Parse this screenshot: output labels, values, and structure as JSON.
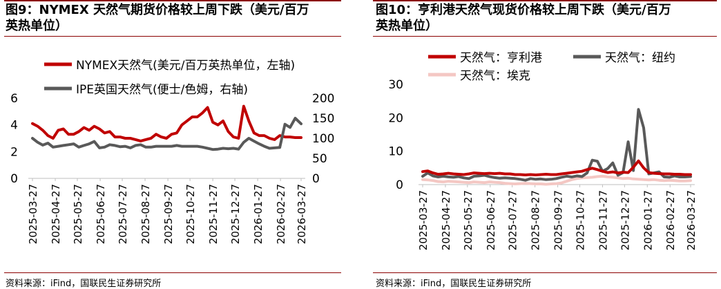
{
  "panels": [
    {
      "title_line1": "图9：NYMEX 天然气期货价格较上周下跌（美元/百万",
      "title_line2": "英热单位）",
      "source": "资料来源：iFind，国联民生证券研究所"
    },
    {
      "title_line1": "图10：亨利港天然气现货价格较上周下跌（美元/百万",
      "title_line2": "英热单位）",
      "source": "资料来源：iFind，国联民生证券研究所"
    }
  ],
  "chart_data": [
    {
      "type": "line",
      "x_ticks": [
        "2025-03-27",
        "2025-04-27",
        "2025-05-27",
        "2025-06-27",
        "2025-07-27",
        "2025-08-27",
        "2025-09-27",
        "2025-10-27",
        "2025-11-27",
        "2025-12-27",
        "2026-01-27",
        "2026-02-27",
        "2026-03-27"
      ],
      "y_left": {
        "ticks": [
          0,
          2,
          4,
          6
        ],
        "range": [
          0,
          6
        ]
      },
      "y_right": {
        "ticks": [
          0,
          50,
          100,
          150,
          200
        ],
        "range": [
          0,
          200
        ]
      },
      "legend": "top",
      "series": [
        {
          "name": "NYMEX天然气(美元/百万英热单位，左轴)",
          "axis": "left",
          "color": "#c00000",
          "x": [
            "2025-03-27",
            "2025-04-03",
            "2025-04-10",
            "2025-04-17",
            "2025-04-24",
            "2025-05-01",
            "2025-05-08",
            "2025-05-15",
            "2025-05-22",
            "2025-05-29",
            "2025-06-05",
            "2025-06-12",
            "2025-06-19",
            "2025-06-26",
            "2025-07-03",
            "2025-07-10",
            "2025-07-17",
            "2025-07-24",
            "2025-07-31",
            "2025-08-07",
            "2025-08-14",
            "2025-08-21",
            "2025-08-28",
            "2025-09-04",
            "2025-09-11",
            "2025-09-18",
            "2025-09-25",
            "2025-10-02",
            "2025-10-09",
            "2025-10-16",
            "2025-10-23",
            "2025-10-30",
            "2025-11-06",
            "2025-11-13",
            "2025-11-20",
            "2025-11-27",
            "2025-12-04",
            "2025-12-11",
            "2025-12-18",
            "2025-12-25",
            "2026-01-01",
            "2026-01-08",
            "2026-01-15",
            "2026-01-22",
            "2026-01-29",
            "2026-02-05",
            "2026-02-12",
            "2026-02-19",
            "2026-02-26",
            "2026-03-05",
            "2026-03-12",
            "2026-03-19",
            "2026-03-27"
          ],
          "values": [
            4.1,
            3.9,
            3.6,
            3.2,
            3.0,
            3.6,
            3.7,
            3.3,
            3.3,
            3.5,
            3.8,
            3.6,
            3.9,
            3.7,
            3.4,
            3.5,
            3.1,
            3.1,
            3.0,
            3.0,
            2.9,
            2.8,
            2.9,
            3.0,
            3.3,
            3.1,
            3.0,
            3.3,
            3.4,
            4.0,
            4.3,
            4.6,
            4.6,
            4.9,
            5.3,
            4.2,
            4.0,
            4.3,
            3.5,
            3.1,
            3.0,
            5.4,
            4.3,
            3.4,
            3.2,
            3.2,
            3.0,
            2.9,
            3.2,
            3.1,
            3.1,
            3.05,
            3.05
          ]
        },
        {
          "name": "IPE英国天然气(便士/色姆，右轴)",
          "axis": "right",
          "color": "#595959",
          "x": [
            "2025-03-27",
            "2025-04-03",
            "2025-04-10",
            "2025-04-17",
            "2025-04-24",
            "2025-05-01",
            "2025-05-08",
            "2025-05-15",
            "2025-05-22",
            "2025-05-29",
            "2025-06-05",
            "2025-06-12",
            "2025-06-19",
            "2025-06-26",
            "2025-07-03",
            "2025-07-10",
            "2025-07-17",
            "2025-07-24",
            "2025-07-31",
            "2025-08-07",
            "2025-08-14",
            "2025-08-21",
            "2025-08-28",
            "2025-09-04",
            "2025-09-11",
            "2025-09-18",
            "2025-09-25",
            "2025-10-02",
            "2025-10-09",
            "2025-10-16",
            "2025-10-23",
            "2025-10-30",
            "2025-11-06",
            "2025-11-13",
            "2025-11-20",
            "2025-11-27",
            "2025-12-04",
            "2025-12-11",
            "2025-12-18",
            "2025-12-25",
            "2026-01-01",
            "2026-01-08",
            "2026-01-15",
            "2026-01-22",
            "2026-01-29",
            "2026-02-05",
            "2026-02-12",
            "2026-02-19",
            "2026-02-26",
            "2026-03-05",
            "2026-03-12",
            "2026-03-19",
            "2026-03-27"
          ],
          "values": [
            100,
            90,
            83,
            88,
            78,
            80,
            82,
            84,
            86,
            78,
            82,
            86,
            92,
            76,
            78,
            84,
            82,
            79,
            80,
            76,
            82,
            84,
            78,
            78,
            80,
            80,
            80,
            80,
            82,
            80,
            80,
            80,
            80,
            78,
            75,
            72,
            73,
            75,
            74,
            75,
            73,
            90,
            100,
            93,
            86,
            80,
            75,
            76,
            77,
            135,
            127,
            150,
            136
          ]
        }
      ]
    },
    {
      "type": "line",
      "x_ticks": [
        "2025-03-27",
        "2025-04-27",
        "2025-05-27",
        "2025-06-27",
        "2025-07-27",
        "2025-08-27",
        "2025-09-27",
        "2025-10-27",
        "2025-11-27",
        "2025-12-27",
        "2026-01-27",
        "2026-02-27",
        "2026-03-27"
      ],
      "y_left": {
        "ticks": [
          0,
          10,
          20,
          30
        ],
        "range": [
          0,
          30
        ]
      },
      "legend": "top",
      "series": [
        {
          "name": "天然气：亨利港",
          "color": "#c00000",
          "x": [
            "2025-03-27",
            "2025-04-03",
            "2025-04-10",
            "2025-04-17",
            "2025-04-24",
            "2025-05-01",
            "2025-05-08",
            "2025-05-15",
            "2025-05-22",
            "2025-05-29",
            "2025-06-05",
            "2025-06-12",
            "2025-06-19",
            "2025-06-26",
            "2025-07-03",
            "2025-07-10",
            "2025-07-17",
            "2025-07-24",
            "2025-07-31",
            "2025-08-07",
            "2025-08-14",
            "2025-08-21",
            "2025-08-28",
            "2025-09-04",
            "2025-09-11",
            "2025-09-18",
            "2025-09-25",
            "2025-10-02",
            "2025-10-09",
            "2025-10-16",
            "2025-10-23",
            "2025-10-30",
            "2025-11-06",
            "2025-11-13",
            "2025-11-20",
            "2025-11-27",
            "2025-12-04",
            "2025-12-11",
            "2025-12-18",
            "2025-12-25",
            "2026-01-01",
            "2026-01-08",
            "2026-01-15",
            "2026-01-22",
            "2026-01-29",
            "2026-02-05",
            "2026-02-12",
            "2026-02-19",
            "2026-02-26",
            "2026-03-05",
            "2026-03-12",
            "2026-03-19",
            "2026-03-27"
          ],
          "values": [
            3.9,
            4.1,
            3.5,
            3.1,
            3.2,
            3.4,
            3.2,
            3.1,
            3.0,
            3.2,
            3.5,
            3.4,
            3.3,
            3.4,
            3.3,
            3.4,
            3.2,
            3.2,
            3.0,
            3.0,
            2.9,
            3.0,
            2.9,
            3.0,
            3.1,
            3.0,
            3.0,
            3.2,
            3.4,
            3.6,
            3.8,
            4.0,
            4.5,
            4.9,
            4.5,
            4.0,
            3.6,
            3.8,
            3.5,
            3.7,
            3.6,
            5.2,
            7.1,
            5.0,
            3.6,
            3.4,
            3.3,
            3.2,
            3.2,
            3.1,
            3.1,
            3.0,
            3.0
          ]
        },
        {
          "name": "天然气：纽约",
          "color": "#595959",
          "x": [
            "2025-03-27",
            "2025-04-03",
            "2025-04-10",
            "2025-04-17",
            "2025-04-24",
            "2025-05-01",
            "2025-05-08",
            "2025-05-15",
            "2025-05-22",
            "2025-05-29",
            "2025-06-05",
            "2025-06-12",
            "2025-06-19",
            "2025-06-26",
            "2025-07-03",
            "2025-07-10",
            "2025-07-17",
            "2025-07-24",
            "2025-07-31",
            "2025-08-07",
            "2025-08-14",
            "2025-08-21",
            "2025-08-28",
            "2025-09-04",
            "2025-09-11",
            "2025-09-18",
            "2025-09-25",
            "2025-10-02",
            "2025-10-09",
            "2025-10-16",
            "2025-10-23",
            "2025-10-30",
            "2025-11-06",
            "2025-11-13",
            "2025-11-20",
            "2025-11-27",
            "2025-12-04",
            "2025-12-11",
            "2025-12-18",
            "2025-12-25",
            "2026-01-01",
            "2026-01-08",
            "2026-01-15",
            "2026-01-22",
            "2026-01-29",
            "2026-02-05",
            "2026-02-12",
            "2026-02-19",
            "2026-02-26",
            "2026-03-05",
            "2026-03-12",
            "2026-03-19",
            "2026-03-27"
          ],
          "values": [
            2.5,
            3.5,
            2.6,
            2.3,
            2.5,
            2.3,
            2.2,
            2.4,
            2.0,
            1.8,
            2.5,
            2.6,
            2.8,
            2.4,
            2.1,
            1.9,
            2.0,
            1.9,
            1.8,
            1.6,
            1.3,
            1.8,
            1.6,
            1.7,
            1.5,
            1.6,
            1.8,
            2.2,
            2.5,
            2.3,
            2.6,
            2.4,
            3.5,
            7.3,
            7.0,
            4.0,
            4.8,
            6.5,
            2.8,
            3.6,
            12.8,
            4.2,
            22.5,
            17.0,
            3.2,
            3.5,
            3.8,
            2.3,
            2.2,
            2.6,
            2.3,
            2.3,
            2.4
          ]
        },
        {
          "name": "天然气：埃克",
          "color": "#f4c7c3",
          "x": [
            "2025-03-27",
            "2025-04-03",
            "2025-04-10",
            "2025-04-17",
            "2025-04-24",
            "2025-05-01",
            "2025-05-08",
            "2025-05-15",
            "2025-05-22",
            "2025-05-29",
            "2025-06-05",
            "2025-06-12",
            "2025-06-19",
            "2025-06-26",
            "2025-07-03",
            "2025-07-10",
            "2025-07-17",
            "2025-07-24",
            "2025-07-31",
            "2025-08-07",
            "2025-08-14",
            "2025-08-21",
            "2025-08-28",
            "2025-09-04",
            "2025-09-11",
            "2025-09-18",
            "2025-09-25",
            "2025-10-02",
            "2025-10-09",
            "2025-10-16",
            "2025-10-23",
            "2025-10-30",
            "2025-11-06",
            "2025-11-13",
            "2025-11-20",
            "2025-11-27",
            "2025-12-04",
            "2025-12-11",
            "2025-12-18",
            "2025-12-25",
            "2026-01-01",
            "2026-01-08",
            "2026-01-15",
            "2026-01-22",
            "2026-01-29",
            "2026-02-05",
            "2026-02-12",
            "2026-02-19",
            "2026-02-26",
            "2026-03-05",
            "2026-03-12",
            "2026-03-19",
            "2026-03-27"
          ],
          "values": [
            1.5,
            1.4,
            1.2,
            0.9,
            0.8,
            1.0,
            0.9,
            0.8,
            0.7,
            0.6,
            0.8,
            0.7,
            0.6,
            0.8,
            0.7,
            0.6,
            0.4,
            0.3,
            0.2,
            0.3,
            0.4,
            0.3,
            0.2,
            0.2,
            0.1,
            0.2,
            0.3,
            0.5,
            1.0,
            1.5,
            1.8,
            2.0,
            2.1,
            2.2,
            2.4,
            2.5,
            2.3,
            2.2,
            2.0,
            1.8,
            1.9,
            1.7,
            1.6,
            1.5,
            1.4,
            1.5,
            1.3,
            1.2,
            1.3,
            1.2,
            1.1,
            1.1,
            1.2
          ]
        }
      ]
    }
  ]
}
